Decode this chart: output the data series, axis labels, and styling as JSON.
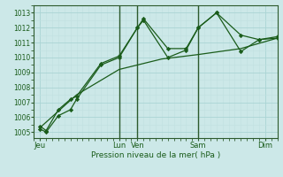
{
  "xlabel": "Pression niveau de la mer( hPa )",
  "bg_color": "#cce8e8",
  "line_color": "#1a5c1a",
  "grid_major_color": "#aad4d4",
  "grid_minor_color": "#c0e0e0",
  "ylim": [
    1004.6,
    1013.5
  ],
  "yticks": [
    1005,
    1006,
    1007,
    1008,
    1009,
    1010,
    1011,
    1012,
    1013
  ],
  "xlim": [
    0,
    20
  ],
  "xtick_labels": [
    "Jeu",
    "Lun",
    "Ven",
    "Sam",
    "Dim"
  ],
  "xtick_positions": [
    0.5,
    7.0,
    8.5,
    13.5,
    19.0
  ],
  "vline_positions": [
    7.0,
    8.5,
    13.5
  ],
  "line1_x": [
    0.5,
    1.0,
    2.0,
    3.0,
    3.5,
    5.5,
    7.0,
    8.5,
    9.0,
    11.0,
    12.5,
    13.5,
    15.0,
    17.0,
    18.5,
    20.0
  ],
  "line1_y": [
    1005.2,
    1005.0,
    1006.1,
    1006.5,
    1007.2,
    1009.5,
    1010.0,
    1012.0,
    1012.5,
    1010.0,
    1010.5,
    1012.0,
    1013.0,
    1011.5,
    1011.2,
    1011.3
  ],
  "line2_x": [
    0.5,
    1.0,
    2.0,
    3.0,
    3.5,
    5.5,
    7.0,
    8.5,
    9.0,
    11.0,
    12.5,
    13.5,
    15.0,
    17.0,
    18.5,
    20.0
  ],
  "line2_y": [
    1005.4,
    1005.1,
    1006.5,
    1007.2,
    1007.4,
    1009.6,
    1010.1,
    1012.0,
    1012.6,
    1010.6,
    1010.6,
    1012.0,
    1013.0,
    1010.4,
    1011.2,
    1011.4
  ],
  "line3_x": [
    0.5,
    3.5,
    7.0,
    10.5,
    13.5,
    17.0,
    20.0
  ],
  "line3_y": [
    1005.3,
    1007.5,
    1009.2,
    1009.9,
    1010.2,
    1010.6,
    1011.3
  ]
}
